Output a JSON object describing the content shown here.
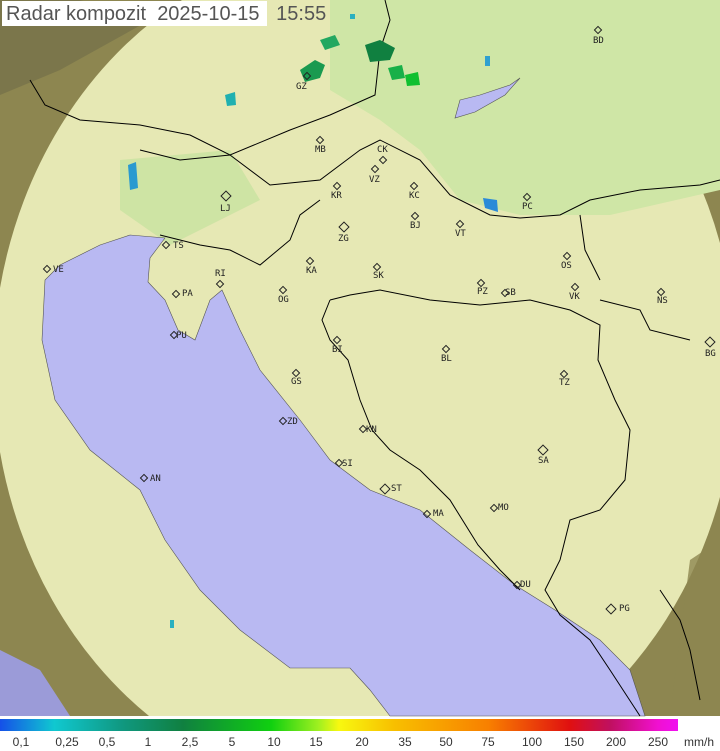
{
  "header": {
    "title": "Radar kompozit",
    "date": "2025-10-15",
    "time": "15:55"
  },
  "cities": [
    {
      "code": "BD"
    },
    {
      "code": "GZ"
    },
    {
      "code": "MB"
    },
    {
      "code": "CK"
    },
    {
      "code": "VZ"
    },
    {
      "code": "KR"
    },
    {
      "code": "KC"
    },
    {
      "code": "LJ",
      "major": true
    },
    {
      "code": "PC"
    },
    {
      "code": "ZG",
      "major": true
    },
    {
      "code": "BJ"
    },
    {
      "code": "VT"
    },
    {
      "code": "TS"
    },
    {
      "code": "VE"
    },
    {
      "code": "RI"
    },
    {
      "code": "KA"
    },
    {
      "code": "SK"
    },
    {
      "code": "OS"
    },
    {
      "code": "PA"
    },
    {
      "code": "OG"
    },
    {
      "code": "PZ"
    },
    {
      "code": "SB"
    },
    {
      "code": "VK"
    },
    {
      "code": "NS"
    },
    {
      "code": "PU"
    },
    {
      "code": "BI"
    },
    {
      "code": "BG",
      "major": true
    },
    {
      "code": "BL"
    },
    {
      "code": "GS"
    },
    {
      "code": "TZ"
    },
    {
      "code": "ZD"
    },
    {
      "code": "KN"
    },
    {
      "code": "SA",
      "major": true
    },
    {
      "code": "SI"
    },
    {
      "code": "AN"
    },
    {
      "code": "ST",
      "major": true
    },
    {
      "code": "MA"
    },
    {
      "code": "MO"
    },
    {
      "code": "DU"
    },
    {
      "code": "PG",
      "major": true
    }
  ],
  "legend": {
    "unit": "mm/h",
    "values": [
      "0,1",
      "0,25",
      "0,5",
      "1",
      "2,5",
      "5",
      "10",
      "15",
      "20",
      "35",
      "50",
      "75",
      "100",
      "150",
      "200",
      "250"
    ],
    "colors": {
      "low": "#1550e8",
      "mid": "#10d010",
      "high": "#f010f0"
    }
  },
  "colors": {
    "sea": "#b9b9f2",
    "land": "#e6e8b4",
    "plain": "#cfe6a6",
    "outside": "#8a8450",
    "border": "#000000"
  }
}
